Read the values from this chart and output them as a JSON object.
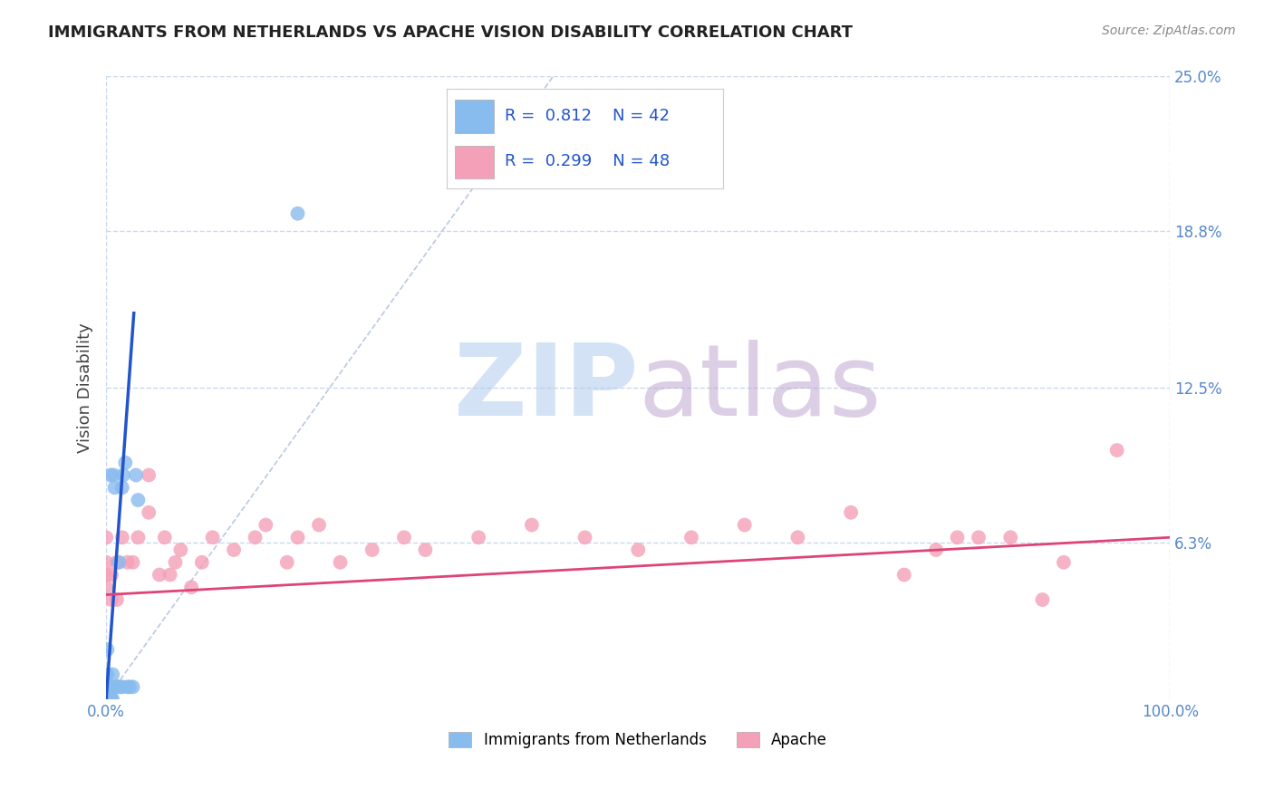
{
  "title": "IMMIGRANTS FROM NETHERLANDS VS APACHE VISION DISABILITY CORRELATION CHART",
  "source": "Source: ZipAtlas.com",
  "ylabel": "Vision Disability",
  "xlim": [
    0,
    1.0
  ],
  "ylim": [
    0,
    0.25
  ],
  "xtick_labels": [
    "0.0%",
    "100.0%"
  ],
  "ytick_labels": [
    "25.0%",
    "18.8%",
    "12.5%",
    "6.3%"
  ],
  "ytick_values": [
    0.25,
    0.188,
    0.125,
    0.063
  ],
  "xtick_values": [
    0.0,
    1.0
  ],
  "legend_label1": "Immigrants from Netherlands",
  "legend_label2": "Apache",
  "color_blue": "#88bbee",
  "color_pink": "#f4a0b8",
  "trendline_blue": "#2255cc",
  "trendline_pink": "#dd4477",
  "bg_color": "#ffffff",
  "grid_color": "#c8d8ee",
  "title_color": "#222222",
  "axis_label_color": "#444444",
  "tick_color": "#5588cc",
  "blue_points_x": [
    0.0,
    0.0,
    0.0,
    0.0,
    0.0,
    0.0,
    0.0,
    0.0,
    0.001,
    0.001,
    0.001,
    0.001,
    0.001,
    0.001,
    0.002,
    0.002,
    0.002,
    0.003,
    0.003,
    0.004,
    0.004,
    0.005,
    0.005,
    0.006,
    0.006,
    0.007,
    0.008,
    0.009,
    0.01,
    0.011,
    0.012,
    0.013,
    0.015,
    0.015,
    0.016,
    0.018,
    0.02,
    0.022,
    0.025,
    0.028,
    0.03,
    0.18
  ],
  "blue_points_y": [
    0.0,
    0.0,
    0.0,
    0.0,
    0.0,
    0.0,
    0.005,
    0.01,
    0.0,
    0.0,
    0.0,
    0.005,
    0.01,
    0.02,
    0.0,
    0.0,
    0.005,
    0.0,
    0.005,
    0.005,
    0.09,
    0.0,
    0.005,
    0.0,
    0.01,
    0.09,
    0.085,
    0.005,
    0.005,
    0.005,
    0.055,
    0.005,
    0.005,
    0.085,
    0.09,
    0.095,
    0.005,
    0.005,
    0.005,
    0.09,
    0.08,
    0.195
  ],
  "pink_points_x": [
    0.0,
    0.0,
    0.0,
    0.0,
    0.005,
    0.005,
    0.01,
    0.01,
    0.015,
    0.02,
    0.025,
    0.03,
    0.04,
    0.04,
    0.05,
    0.055,
    0.06,
    0.065,
    0.07,
    0.08,
    0.09,
    0.1,
    0.12,
    0.14,
    0.15,
    0.17,
    0.18,
    0.2,
    0.22,
    0.25,
    0.28,
    0.3,
    0.35,
    0.4,
    0.45,
    0.5,
    0.55,
    0.6,
    0.65,
    0.7,
    0.75,
    0.78,
    0.8,
    0.82,
    0.85,
    0.88,
    0.9,
    0.95
  ],
  "pink_points_y": [
    0.045,
    0.05,
    0.055,
    0.065,
    0.04,
    0.05,
    0.04,
    0.055,
    0.065,
    0.055,
    0.055,
    0.065,
    0.075,
    0.09,
    0.05,
    0.065,
    0.05,
    0.055,
    0.06,
    0.045,
    0.055,
    0.065,
    0.06,
    0.065,
    0.07,
    0.055,
    0.065,
    0.07,
    0.055,
    0.06,
    0.065,
    0.06,
    0.065,
    0.07,
    0.065,
    0.06,
    0.065,
    0.07,
    0.065,
    0.075,
    0.05,
    0.06,
    0.065,
    0.065,
    0.065,
    0.04,
    0.055,
    0.1
  ],
  "blue_trend_x": [
    0.0,
    0.026
  ],
  "blue_trend_y": [
    0.0,
    0.155
  ],
  "pink_trend_x": [
    0.0,
    1.0
  ],
  "pink_trend_y": [
    0.042,
    0.065
  ],
  "dashed_line_x": [
    0.0,
    0.42
  ],
  "dashed_line_y": [
    0.0,
    0.25
  ]
}
